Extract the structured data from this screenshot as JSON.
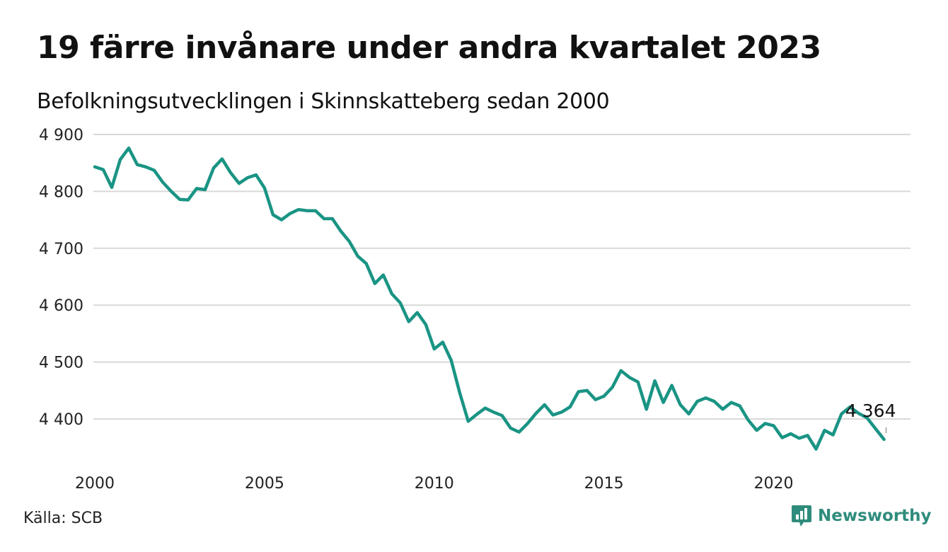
{
  "header": {
    "title": "19 färre invånare under andra kvartalet 2023",
    "subtitle": "Befolkningsutvecklingen i Skinnskatteberg sedan 2000"
  },
  "footer": {
    "source": "Källa: SCB",
    "brand": "Newsworthy"
  },
  "colors": {
    "line": "#1a9484",
    "grid": "#d9d9d9",
    "brand": "#2f8c7c"
  },
  "chart_data": {
    "type": "line",
    "title": "19 färre invånare under andra kvartalet 2023",
    "subtitle": "Befolkningsutvecklingen i Skinnskatteberg sedan 2000",
    "xlabel": "",
    "ylabel": "",
    "xlim": [
      2000,
      2024
    ],
    "ylim": [
      4340,
      4900
    ],
    "x_ticks": [
      2000,
      2005,
      2010,
      2015,
      2020
    ],
    "y_ticks": [
      4400,
      4500,
      4600,
      4700,
      4800,
      4900
    ],
    "y_tick_labels": [
      "4 400",
      "4 500",
      "4 600",
      "4 700",
      "4 800",
      "4 900"
    ],
    "grid": true,
    "end_label": "4 364",
    "series": [
      {
        "x": [
          2000.0,
          2000.25,
          2000.5,
          2000.75,
          2001.0,
          2001.25,
          2001.5,
          2001.75,
          2002.0,
          2002.25,
          2002.5,
          2002.75,
          2003.0,
          2003.25,
          2003.5,
          2003.75,
          2004.0,
          2004.25,
          2004.5,
          2004.75,
          2005.0,
          2005.25,
          2005.5,
          2005.75,
          2006.0,
          2006.25,
          2006.5,
          2006.75,
          2007.0,
          2007.25,
          2007.5,
          2007.75,
          2008.0,
          2008.25,
          2008.5,
          2008.75,
          2009.0,
          2009.25,
          2009.5,
          2009.75,
          2010.0,
          2010.25,
          2010.5,
          2010.75,
          2011.0,
          2011.25,
          2011.5,
          2011.75,
          2012.0,
          2012.25,
          2012.5,
          2012.75,
          2013.0,
          2013.25,
          2013.5,
          2013.75,
          2014.0,
          2014.25,
          2014.5,
          2014.75,
          2015.0,
          2015.25,
          2015.5,
          2015.75,
          2016.0,
          2016.25,
          2016.5,
          2016.75,
          2017.0,
          2017.25,
          2017.5,
          2017.75,
          2018.0,
          2018.25,
          2018.5,
          2018.75,
          2019.0,
          2019.25,
          2019.5,
          2019.75,
          2020.0,
          2020.25,
          2020.5,
          2020.75,
          2021.0,
          2021.25,
          2021.5,
          2021.75,
          2022.0,
          2022.25,
          2022.5,
          2022.75,
          2023.0,
          2023.25
        ],
        "values": [
          4843,
          4838,
          4807,
          4856,
          4876,
          4847,
          4843,
          4837,
          4816,
          4800,
          4786,
          4785,
          4805,
          4803,
          4841,
          4857,
          4833,
          4814,
          4824,
          4829,
          4806,
          4759,
          4750,
          4761,
          4768,
          4766,
          4766,
          4752,
          4752,
          4730,
          4712,
          4686,
          4673,
          4638,
          4653,
          4620,
          4604,
          4571,
          4587,
          4566,
          4523,
          4535,
          4503,
          4446,
          4396,
          4408,
          4419,
          4412,
          4406,
          4384,
          4377,
          4392,
          4410,
          4425,
          4407,
          4412,
          4421,
          4448,
          4450,
          4434,
          4440,
          4456,
          4485,
          4473,
          4465,
          4417,
          4467,
          4429,
          4459,
          4425,
          4409,
          4431,
          4437,
          4431,
          4417,
          4429,
          4423,
          4398,
          4380,
          4392,
          4388,
          4367,
          4374,
          4366,
          4371,
          4347,
          4380,
          4372,
          4409,
          4421,
          4410,
          4402,
          4383,
          4364
        ]
      }
    ]
  }
}
